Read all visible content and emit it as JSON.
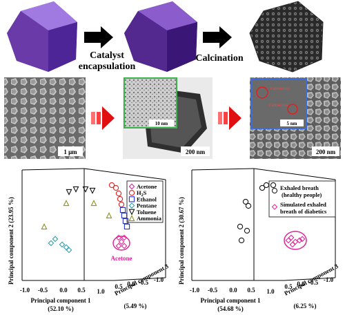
{
  "process": {
    "step1_line1": "Catalyst",
    "step1_line2": "encapsulation",
    "step2": "Calcination"
  },
  "micrographs": {
    "sem1_scale": "1 μm",
    "tem_inset_scale": "10 nm",
    "tem_scale": "200 nm",
    "hrtem_inset_scale": "5 nm",
    "hrtem_label1": "Co3O4 (311)",
    "hrtem_label2": "Co3O4 (311)",
    "sem2_scale": "200 nm"
  },
  "colors": {
    "acetone": "#e0249a",
    "h2s": "#e02020",
    "ethanol": "#2030d0",
    "pentane": "#30a0b0",
    "toluene": "#111111",
    "ammonia": "#909020",
    "purple": "#6a3ba8",
    "arrow_red": "#e01010"
  },
  "chart_data": [
    {
      "type": "scatter",
      "title": "",
      "axes": {
        "x": "Principal component 1",
        "x_pct": "(52.10 %)",
        "y": "Principal component 2 (23.95 %)",
        "z": "Principal component 3",
        "z_pct": "(5.49 %)",
        "x_ticks": [
          "-1.0",
          "-0.5",
          "0.0",
          "0.5",
          "1.0"
        ],
        "z_ticks": [
          "0.5",
          "0.0",
          "-0.5",
          "-1.0"
        ]
      },
      "annotation": "Acetone",
      "series": [
        {
          "name": "Acetone",
          "marker": "diamond",
          "color": "#e0249a",
          "points": [
            [
              0.93,
              0.0,
              0.0
            ],
            [
              0.98,
              0.0,
              0.0
            ],
            [
              1.03,
              0.0,
              0.0
            ],
            [
              0.96,
              0.0,
              0.0
            ],
            [
              1.0,
              0.0,
              0.0
            ]
          ]
        },
        {
          "name": "H2S",
          "marker": "circle",
          "color": "#e02020",
          "points": [
            [
              0.55,
              0.7,
              0.0
            ],
            [
              0.6,
              0.65,
              0.0
            ],
            [
              0.62,
              0.6,
              0.0
            ],
            [
              0.66,
              0.55,
              0.0
            ],
            [
              0.68,
              0.48,
              0.0
            ]
          ]
        },
        {
          "name": "Ethanol",
          "marker": "square",
          "color": "#2030d0",
          "points": [
            [
              0.7,
              0.42,
              0.0
            ],
            [
              0.73,
              0.36,
              0.0
            ],
            [
              0.76,
              0.3,
              0.0
            ],
            [
              0.79,
              0.24,
              0.0
            ]
          ]
        },
        {
          "name": "Pentane",
          "marker": "diamond",
          "color": "#30a0b0",
          "points": [
            [
              -0.55,
              -0.1,
              0.0
            ],
            [
              -0.5,
              -0.05,
              0.0
            ],
            [
              -0.3,
              -0.1,
              0.0
            ],
            [
              -0.25,
              -0.15,
              0.0
            ],
            [
              -0.2,
              -0.2,
              0.0
            ]
          ]
        },
        {
          "name": "Toluene",
          "marker": "triangle-down",
          "color": "#111111",
          "points": [
            [
              -0.3,
              0.9,
              0.0
            ],
            [
              -0.05,
              0.95,
              0.0
            ],
            [
              0.12,
              0.95,
              0.0
            ],
            [
              0.3,
              0.9,
              0.0
            ]
          ]
        },
        {
          "name": "Ammonia",
          "marker": "triangle-up",
          "color": "#909020",
          "points": [
            [
              -0.7,
              0.2,
              0.0
            ],
            [
              -0.3,
              0.65,
              0.0
            ],
            [
              0.35,
              0.65,
              0.0
            ],
            [
              0.45,
              0.5,
              0.0
            ]
          ]
        }
      ]
    },
    {
      "type": "scatter",
      "title": "",
      "axes": {
        "x": "Principal component 1",
        "x_pct": "(54.68 %)",
        "y": "Principal component 2 (30.67 %)",
        "z": "Principal component 3",
        "z_pct": "(6.25 %)",
        "x_ticks": [
          "-1.0",
          "-0.5",
          "0.0",
          "0.5",
          "1.0"
        ],
        "z_ticks": [
          "0.5",
          "0.0",
          "-0.5",
          "-1.0"
        ]
      },
      "series": [
        {
          "name": "Exhaled breath (healthy people)",
          "marker": "circle",
          "color": "#111111",
          "points": [
            [
              0.1,
              0.95,
              0.0
            ],
            [
              0.15,
              1.0,
              0.0
            ],
            [
              0.3,
              1.0,
              0.0
            ],
            [
              -0.1,
              0.6,
              0.0
            ],
            [
              -0.05,
              0.55,
              0.0
            ],
            [
              -0.2,
              0.2,
              0.0
            ],
            [
              -0.05,
              0.15,
              0.0
            ],
            [
              -0.25,
              0.05,
              0.0
            ]
          ]
        },
        {
          "name": "Simulated exhaled breath of diabetics",
          "marker": "diamond",
          "color": "#e0249a",
          "points": [
            [
              0.8,
              0.05,
              0.0
            ],
            [
              0.85,
              0.05,
              0.0
            ],
            [
              0.9,
              0.05,
              0.0
            ],
            [
              0.95,
              0.05,
              0.0
            ],
            [
              1.0,
              0.05,
              0.0
            ],
            [
              1.05,
              0.05,
              0.0
            ]
          ]
        }
      ],
      "legend_lines": [
        "Exhaled breath",
        "(healthy people)",
        "Simulated exhaled",
        "breath of diabetics"
      ]
    }
  ]
}
